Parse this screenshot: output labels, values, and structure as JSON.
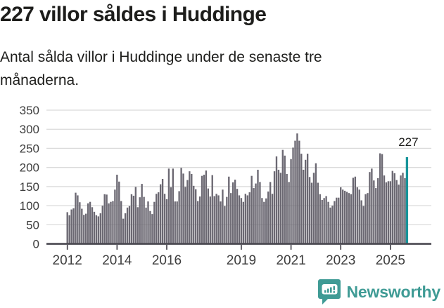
{
  "header": {
    "title": "227 villor såldes i Huddinge",
    "subtitle": "Antal sålda villor i Huddinge under de senaste tre månaderna."
  },
  "chart_data": {
    "type": "bar",
    "title": "227 villor såldes i Huddinge",
    "xlabel": "",
    "ylabel": "",
    "frequency": "monthly",
    "start_year": 2012,
    "start_month": 1,
    "values": [
      83,
      75,
      90,
      93,
      134,
      127,
      109,
      92,
      76,
      79,
      106,
      110,
      96,
      84,
      75,
      72,
      80,
      100,
      130,
      129,
      106,
      110,
      112,
      142,
      181,
      163,
      112,
      66,
      80,
      95,
      99,
      130,
      126,
      149,
      96,
      122,
      157,
      123,
      95,
      111,
      86,
      78,
      110,
      131,
      135,
      156,
      170,
      131,
      117,
      197,
      148,
      197,
      111,
      111,
      138,
      199,
      184,
      149,
      167,
      190,
      183,
      152,
      143,
      112,
      124,
      178,
      181,
      192,
      145,
      124,
      180,
      125,
      131,
      127,
      111,
      142,
      99,
      123,
      176,
      133,
      161,
      168,
      144,
      127,
      120,
      110,
      131,
      127,
      135,
      178,
      146,
      158,
      194,
      162,
      120,
      110,
      119,
      137,
      162,
      131,
      190,
      229,
      194,
      186,
      246,
      231,
      183,
      162,
      222,
      252,
      270,
      289,
      270,
      236,
      194,
      220,
      236,
      175,
      160,
      186,
      211,
      160,
      130,
      115,
      120,
      125,
      110,
      95,
      100,
      112,
      121,
      121,
      148,
      142,
      139,
      136,
      133,
      130,
      173,
      176,
      148,
      142,
      114,
      99,
      130,
      133,
      188,
      197,
      166,
      146,
      172,
      237,
      235,
      179,
      161,
      164,
      164,
      191,
      185,
      167,
      155,
      179,
      186,
      172,
      227
    ],
    "highlight": {
      "index": 164,
      "label": "227",
      "color": "#17949a"
    },
    "bar_color": "#6b6872",
    "grid": true,
    "legend": false,
    "ylim": [
      0,
      350
    ],
    "y_ticks": [
      0,
      50,
      100,
      150,
      200,
      250,
      300,
      350
    ],
    "x_tick_years": [
      2012,
      2014,
      2016,
      2019,
      2021,
      2023,
      2025
    ]
  },
  "footer": {
    "brand": "Newsworthy",
    "brand_color": "#3f9b95",
    "logo_icon": "bar-chart-speech-bubble-icon"
  }
}
